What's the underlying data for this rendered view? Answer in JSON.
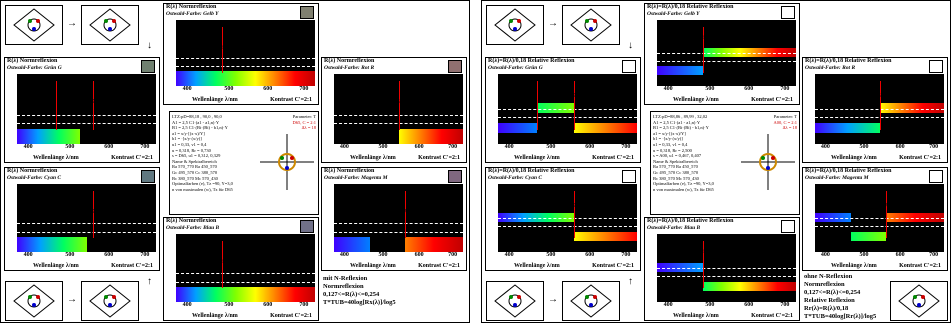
{
  "left": {
    "panels": {
      "top": {
        "title": "R(λ) Normreflexion",
        "subtitle": "Ostwald-Farbe: Gelb Y",
        "header_right": "Dreiecks-Helligkeit: T*",
        "peak": "λ=495",
        "color": "#f8f808",
        "swatch": "#808070"
      },
      "green": {
        "title": "R(λ) Normreflexion",
        "subtitle": "Ostwald-Farbe: Grün G",
        "header_right": "Dreiecks-Helligkeit: T*",
        "peak1": "λ=470",
        "peak2": "λ=570",
        "swatch": "#708070"
      },
      "red": {
        "title": "R(λ) Normreflexion",
        "subtitle": "Ostwald-Farbe: Rot R",
        "header_right": "Dreiecks-Helligkeit: T*",
        "peak": "λ=570",
        "swatch": "#907070"
      },
      "cyan": {
        "title": "R(λ) Normreflexion",
        "subtitle": "Ostwald-Farbe: Cyan C",
        "header_right": "Dreiecks-Helligkeit: T*",
        "peak": "λ=570",
        "swatch": "#607880"
      },
      "magenta": {
        "title": "R(λ) Normreflexion",
        "subtitle": "Ostwald-Farbe: Magenta M",
        "header_right": "Dreiecks-Helligkeit: T*",
        "peak": "λ=570",
        "swatch": "#806880"
      },
      "blue": {
        "title": "R(λ) Normreflexion",
        "subtitle": "Ostwald-Farbe: Blau B",
        "header_right": "Dreiecks-Helligkeit: T*",
        "peak": "λ=495",
        "swatch": "#707088"
      }
    },
    "caption": [
      "mit N-Reflexion",
      "Normreflexion",
      "0,127<=R(λ)<=0,254",
      "",
      "T*TUB=40log[Rx(λ)]/log5"
    ]
  },
  "right": {
    "panels": {
      "top": {
        "title": "R(λ)=R(λ)/0,18 Relative Reflexion",
        "subtitle": "Ostwald-Farbe: Gelb Y",
        "header_right": "Dreiecks-Helligkeit: T*",
        "peak": "λ=495"
      },
      "green": {
        "title": "R(λ)=R(λ)/0,18 Relative Reflexion",
        "subtitle": "Ostwald-Farbe: Grün G",
        "header_right": "Dreiecks-Helligkeit: T*",
        "peak1": "λ=470",
        "peak2": "λ=570"
      },
      "red": {
        "title": "R(λ)=R(λ)/0,18 Relative Reflexion",
        "subtitle": "Ostwald-Farbe: Rot R",
        "header_right": "Dreiecks-Helligkeit: T*",
        "peak": "λ=570"
      },
      "cyan": {
        "title": "R(λ)=R(λ)/0,18 Relative Reflexion",
        "subtitle": "Ostwald-Farbe: Cyan C",
        "header_right": "Dreiecks-Helligkeit: T*",
        "peak": "λ=570"
      },
      "magenta": {
        "title": "R(λ)=R(λ)/0,18 Relative Reflexion",
        "subtitle": "Ostwald-Farbe: Magenta M",
        "header_right": "Dreiecks-Helligkeit: T*",
        "peak": "λ=570"
      },
      "blue": {
        "title": "R(λ)=R(λ)/0,18 Relative Reflexion",
        "subtitle": "Ostwald-Farbe: Blau B",
        "header_right": "Dreiecks-Helligkeit: T*",
        "peak": "λ=495"
      }
    },
    "caption": [
      "ohne N-Reflexion",
      "Normreflexion",
      "0,127<=R(λ)<=0,254",
      "Relative Reflexion",
      "Rr(λ)=R(λ)/0,18",
      "T*TUB=40log[Rr(λ)]/log5"
    ]
  },
  "axis": {
    "ticks": [
      "400",
      "500",
      "600",
      "700"
    ],
    "xlabel": "Wellenlänge λ/nm",
    "kontrast": "Kontrast C'=2:1"
  },
  "center_left": {
    "lines": [
      "LTZ:pD=88,18 , 90,0 , 90,0",
      "A1 = 2,5 C1·(a1 - a1,n)·Y",
      "B1 = 2,5 C1·(Bi·(Bi) - b1,n)·Y",
      "a1 = x/y·[(x·x)/Y]",
      "b1 = ·[x/y·(x/y)]",
      "u1 = 0,33, v1 = 0,4",
      "u = 0,318, Rr = 0,730",
      "s = D65, u1 = 0,312, 0,329",
      "Name & Spektralbereich",
      "Ra 570_770   Ra 450_570",
      "Gc 495_570   Cc 380_570",
      "Bc 380_570   Mc 570_430",
      "Optimalfarben (e), Tz =90, Y=3,0",
      "n von maximalen (w), Tz für D65"
    ],
    "side": [
      "Parameter: T",
      "D65, C = 2:1",
      "Δλ = 18"
    ]
  },
  "center_right": {
    "lines": [
      "LTZ:pD=88,86 , 89,99 , 32,02",
      "A1 = 2,5 C1·(a1 - a1,n)·Y",
      "B1 = 2,5 C1·(Bi·(Bi) - b1,n)·Y",
      "a1 = x/y·[(x·x)/Y]",
      "b1 = ·[x/y·(x/y)]",
      "u1 = 0,33, v1 = 0,4",
      "u = 0,318, Rr = 2,500",
      "s = A00, u1 = 0,467, 0,407",
      "Name & Spektralbereich",
      "Ra 570_770   Ra 450_570",
      "Gc 495_570   Cc 380_570",
      "Bc 380_570   Mc 570_430",
      "Optimalfarben (e), Tz =90, Y=3,0",
      "n von maximalen (w), Tz für D65"
    ],
    "side": [
      "Parameter: T",
      "A00, C = 2:1",
      "Δλ = 18"
    ]
  }
}
